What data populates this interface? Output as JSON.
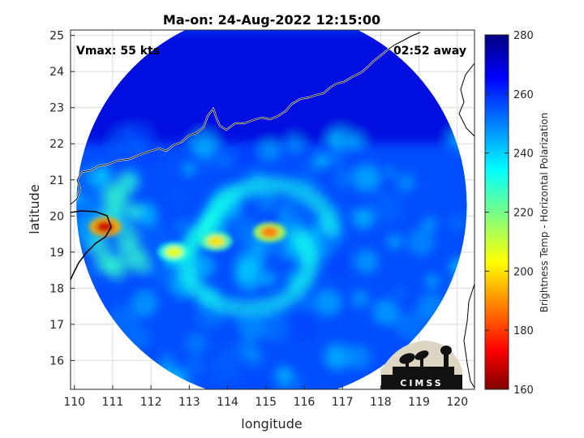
{
  "chart_data": {
    "type": "heatmap",
    "title": "Ma-on: 24-Aug-2022 12:15:00",
    "xlabel": "longitude",
    "ylabel": "latitude",
    "xlim": [
      109.9,
      120.45
    ],
    "ylim": [
      15.2,
      25.15
    ],
    "xticks": [
      110,
      111,
      112,
      113,
      114,
      115,
      116,
      117,
      118,
      119,
      120
    ],
    "yticks": [
      16,
      17,
      18,
      19,
      20,
      21,
      22,
      23,
      24,
      25
    ],
    "grid": true,
    "annotations": {
      "vmax": "Vmax: 55 kts",
      "time_away": "02:52 away"
    },
    "colorbar": {
      "label": "Brightness Temp - Horizontal Polarization",
      "min": 160,
      "max": 280,
      "ticks": [
        160,
        180,
        200,
        220,
        240,
        260,
        280
      ],
      "colormap": "jet"
    },
    "swath": {
      "center": [
        115.15,
        20.3
      ],
      "radius_deg": 5.1
    },
    "features": [
      {
        "type": "warm",
        "lon": 110.8,
        "lat": 19.7,
        "value": 168
      },
      {
        "type": "warm",
        "lon": 115.1,
        "lat": 19.55,
        "value": 188
      },
      {
        "type": "warm",
        "lon": 113.7,
        "lat": 19.3,
        "value": 200
      },
      {
        "type": "warm",
        "lon": 112.6,
        "lat": 19.0,
        "value": 205
      }
    ],
    "logo": "CIMSS"
  }
}
